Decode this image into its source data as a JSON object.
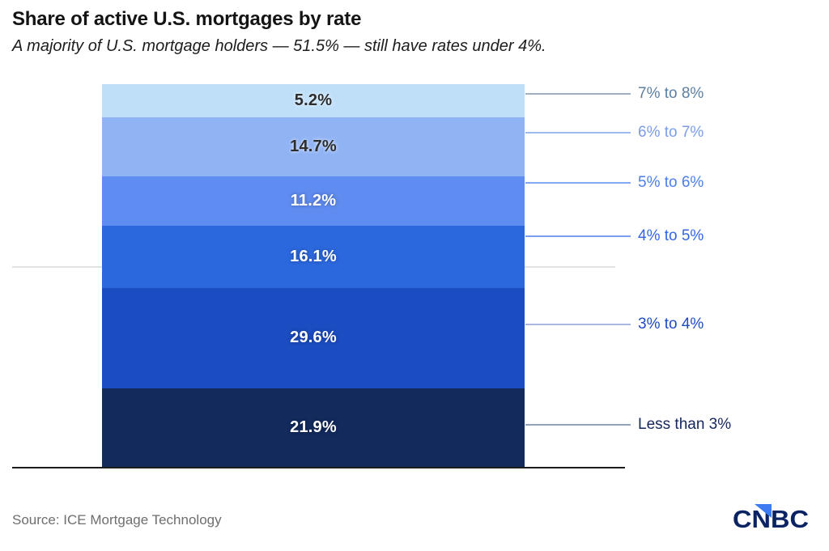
{
  "header": {
    "title": "Share of active U.S. mortgages by rate",
    "subtitle": "A majority of U.S. mortgage holders — 51.5% — still have rates under 4%."
  },
  "chart_data": {
    "type": "bar",
    "subtype": "single-stacked-column",
    "title": "Share of active U.S. mortgages by rate",
    "unit": "%",
    "ylim": [
      0,
      100
    ],
    "categories": [
      "7% to 8%",
      "6% to 7%",
      "5% to 6%",
      "4% to 5%",
      "3% to 4%",
      "Less than 3%"
    ],
    "values": [
      5.2,
      14.7,
      11.2,
      16.1,
      29.6,
      21.9
    ],
    "annotation": "51.5% cumulative share has rates under 4% (gridline at top of 3% to 4% segment)",
    "gridline_after_index": 4,
    "gridline_color": "#e3e3e3",
    "baseline_color": "#1c1c1c",
    "segments": [
      {
        "range_label": "7% to 8%",
        "value": 5.2,
        "value_label": "5.2%",
        "fill": "#bfdff9",
        "value_text_color": "#2d2d2d",
        "callout_text_color": "#5d7fa1",
        "callout_line_color": "#9fafc2"
      },
      {
        "range_label": "6% to 7%",
        "value": 14.7,
        "value_label": "14.7%",
        "fill": "#90b3f4",
        "value_text_color": "#2d2d2d",
        "callout_text_color": "#7b9de6",
        "callout_line_color": "#9db8ef"
      },
      {
        "range_label": "5% to 6%",
        "value": 11.2,
        "value_label": "11.2%",
        "fill": "#5f8cf1",
        "value_text_color": "#ffffff",
        "callout_text_color": "#4c7eea",
        "callout_line_color": "#84a7f2"
      },
      {
        "range_label": "4% to 5%",
        "value": 16.1,
        "value_label": "16.1%",
        "fill": "#2b68de",
        "value_text_color": "#ffffff",
        "callout_text_color": "#3465e6",
        "callout_line_color": "#7b9ff0"
      },
      {
        "range_label": "3% to 4%",
        "value": 29.6,
        "value_label": "29.6%",
        "fill": "#1c4cc2",
        "value_text_color": "#ffffff",
        "callout_text_color": "#1e4bc4",
        "callout_line_color": "#a9b7e1"
      },
      {
        "range_label": "Less than 3%",
        "value": 21.9,
        "value_label": "21.9%",
        "fill": "#122a5c",
        "value_text_color": "#ffffff",
        "callout_text_color": "#15265c",
        "callout_line_color": "#93a2bd"
      }
    ]
  },
  "footer": {
    "source": "Source: ICE Mortgage Technology",
    "logo_text": "CNBC",
    "logo_navy": "#0a2463",
    "logo_blue": "#3d7bf3"
  }
}
